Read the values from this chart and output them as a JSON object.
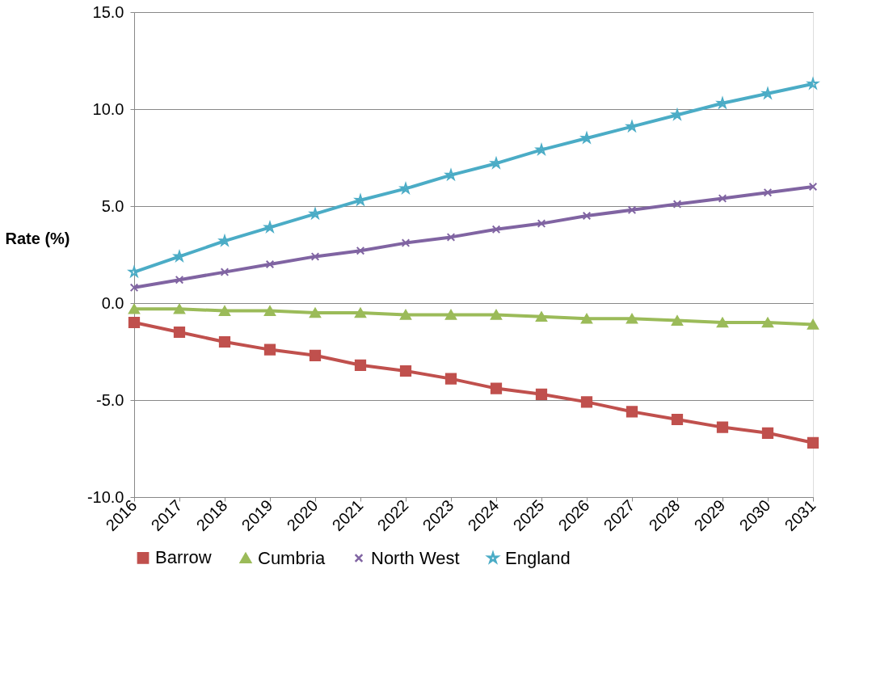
{
  "chart_data": {
    "type": "line",
    "ylabel": "Rate (%)",
    "categories": [
      "2016",
      "2017",
      "2018",
      "2019",
      "2020",
      "2021",
      "2022",
      "2023",
      "2024",
      "2025",
      "2026",
      "2027",
      "2028",
      "2029",
      "2030",
      "2031"
    ],
    "series": [
      {
        "name": "Barrow",
        "color": "#c0504d",
        "marker": "square",
        "values": [
          -1.0,
          -1.5,
          -2.0,
          -2.4,
          -2.7,
          -3.2,
          -3.5,
          -3.9,
          -4.4,
          -4.7,
          -5.1,
          -5.6,
          -6.0,
          -6.4,
          -6.7,
          -7.2
        ]
      },
      {
        "name": "Cumbria",
        "color": "#9bbb59",
        "marker": "triangle",
        "values": [
          -0.3,
          -0.3,
          -0.4,
          -0.4,
          -0.5,
          -0.5,
          -0.6,
          -0.6,
          -0.6,
          -0.7,
          -0.8,
          -0.8,
          -0.9,
          -1.0,
          -1.0,
          -1.1
        ]
      },
      {
        "name": "North West",
        "color": "#8064a2",
        "marker": "cross",
        "values": [
          0.8,
          1.2,
          1.6,
          2.0,
          2.4,
          2.7,
          3.1,
          3.4,
          3.8,
          4.1,
          4.5,
          4.8,
          5.1,
          5.4,
          5.7,
          6.0
        ]
      },
      {
        "name": "England",
        "color": "#4bacc6",
        "marker": "star",
        "values": [
          1.6,
          2.4,
          3.2,
          3.9,
          4.6,
          5.3,
          5.9,
          6.6,
          7.2,
          7.9,
          8.5,
          9.1,
          9.7,
          10.3,
          10.8,
          11.3
        ]
      }
    ],
    "ylim": [
      -10,
      15
    ],
    "yticks": [
      {
        "value": -10,
        "label": "-10.0"
      },
      {
        "value": -5,
        "label": "-5.0"
      },
      {
        "value": 0,
        "label": "0.0"
      },
      {
        "value": 5,
        "label": "5.0"
      },
      {
        "value": 10,
        "label": "10.0"
      },
      {
        "value": 15,
        "label": "15.0"
      }
    ],
    "grid": "y",
    "legend": "bottom",
    "line_style": "solid"
  }
}
